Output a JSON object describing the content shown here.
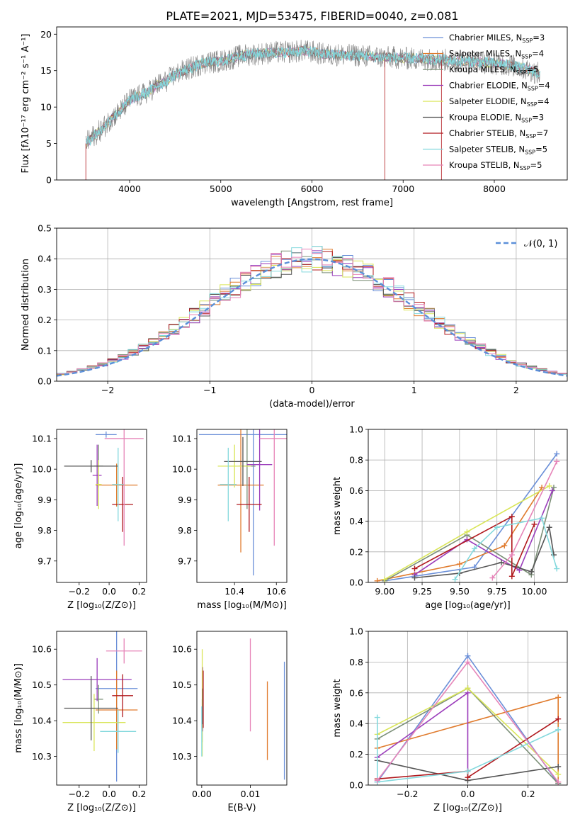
{
  "title": "PLATE=2021, MJD=53475, FIBERID=0040, z=0.081",
  "colors": [
    "#6a8fd8",
    "#e07b2d",
    "#7b8f77",
    "#9b3dbb",
    "#d9e558",
    "#555555",
    "#b0181d",
    "#84d9dd",
    "#e684b8"
  ],
  "chart_data": [
    {
      "id": "spectrum",
      "type": "line",
      "xlabel": "wavelength [Angstrom, rest frame]",
      "ylabel": "Flux [fλ10⁻¹⁷ erg cm⁻² s⁻¹ A⁻¹]",
      "xlim": [
        3200,
        8800
      ],
      "ylim": [
        0,
        21
      ],
      "xticks": [
        "4000",
        "5000",
        "6000",
        "7000",
        "8000"
      ],
      "yticks": [
        "0",
        "5",
        "10",
        "15",
        "20"
      ],
      "data_color": "#808080",
      "model_color": "#84d9dd",
      "data_points": [
        [
          3520,
          5
        ],
        [
          3600,
          6
        ],
        [
          3700,
          7
        ],
        [
          3800,
          8.5
        ],
        [
          3900,
          9.5
        ],
        [
          4000,
          11
        ],
        [
          4100,
          11.5
        ],
        [
          4200,
          12
        ],
        [
          4300,
          13
        ],
        [
          4400,
          13.5
        ],
        [
          4500,
          14.5
        ],
        [
          4600,
          15
        ],
        [
          4700,
          15.5
        ],
        [
          4800,
          16
        ],
        [
          4900,
          16.2
        ],
        [
          5000,
          16.3
        ],
        [
          5100,
          16.6
        ],
        [
          5200,
          17
        ],
        [
          5300,
          17.2
        ],
        [
          5400,
          17.3
        ],
        [
          5500,
          17.4
        ],
        [
          5600,
          17.5
        ],
        [
          5700,
          17.5
        ],
        [
          5800,
          17.6
        ],
        [
          5900,
          17.7
        ],
        [
          6000,
          17.6
        ],
        [
          6100,
          17.3
        ],
        [
          6200,
          17.2
        ],
        [
          6300,
          17.2
        ],
        [
          6400,
          17.1
        ],
        [
          6500,
          17.1
        ],
        [
          6600,
          17.0
        ],
        [
          6700,
          16.9
        ],
        [
          6800,
          16.8
        ],
        [
          6900,
          16.8
        ],
        [
          7000,
          16.7
        ],
        [
          7200,
          16.6
        ],
        [
          7400,
          16.5
        ],
        [
          7600,
          16.3
        ],
        [
          7800,
          16.2
        ],
        [
          8000,
          16.0
        ],
        [
          8200,
          15.7
        ],
        [
          8400,
          15.0
        ],
        [
          8500,
          14.5
        ]
      ],
      "legend": [
        {
          "name": "Chabrier MILES, N",
          "sub": "SSP",
          "suffix": "=3"
        },
        {
          "name": "Salpeter MILES, N",
          "sub": "SSP",
          "suffix": "=4"
        },
        {
          "name": "Kroupa MILES, N",
          "sub": "SSP",
          "suffix": "=5"
        },
        {
          "name": "Chabrier ELODIE, N",
          "sub": "SSP",
          "suffix": "=4"
        },
        {
          "name": "Salpeter ELODIE, N",
          "sub": "SSP",
          "suffix": "=4"
        },
        {
          "name": "Kroupa ELODIE, N",
          "sub": "SSP",
          "suffix": "=3"
        },
        {
          "name": "Chabrier STELIB, N",
          "sub": "SSP",
          "suffix": "=7"
        },
        {
          "name": "Salpeter STELIB, N",
          "sub": "SSP",
          "suffix": "=5"
        },
        {
          "name": "Kroupa STELIB, N",
          "sub": "SSP",
          "suffix": "=5"
        }
      ],
      "grid": false,
      "legend_position": "right"
    },
    {
      "id": "residuals",
      "type": "histogram",
      "xlabel": "(data-model)/error",
      "ylabel": "Normed distribution",
      "xlim": [
        -2.5,
        2.5
      ],
      "ylim": [
        0,
        0.5
      ],
      "xticks": [
        "−2",
        "−1",
        "0",
        "1",
        "2"
      ],
      "yticks": [
        "0.0",
        "0.1",
        "0.2",
        "0.3",
        "0.4",
        "0.5"
      ],
      "bin_width": 0.1,
      "gaussian_label": "𝒩(0, 1)",
      "gaussian_color": "#5b8fd9",
      "grid": true,
      "legend_position": "top-right"
    },
    {
      "id": "age-vs-z",
      "type": "errorbar",
      "xlabel": "Z [log₁₀(Z/Z⊙)]",
      "ylabel": "age  [log₁₀(age/yr)]",
      "xlim": [
        -0.35,
        0.25
      ],
      "ylim": [
        9.63,
        10.13
      ],
      "xticks": [
        "−0.2",
        "0.0",
        "0.2"
      ],
      "yticks": [
        "9.7",
        "9.8",
        "9.9",
        "10.0",
        "10.1"
      ],
      "points": [
        {
          "x": -0.02,
          "xerr": 0.07,
          "y": 10.113,
          "yerr": 0.01
        },
        {
          "x": 0.05,
          "xerr": 0.14,
          "y": 9.948,
          "yerr": 0.07
        },
        {
          "x": -0.07,
          "xerr": 0.03,
          "y": 10.01,
          "yerr": 0.07
        },
        {
          "x": -0.08,
          "xerr": 0.03,
          "y": 9.98,
          "yerr": 0.1
        },
        {
          "x": -0.07,
          "xerr": 0.02,
          "y": 9.95,
          "yerr": 0.08
        },
        {
          "x": -0.12,
          "xerr": 0.18,
          "y": 10.01,
          "yerr": 0.02
        },
        {
          "x": 0.09,
          "xerr": 0.07,
          "y": 9.885,
          "yerr": 0.09
        },
        {
          "x": 0.06,
          "xerr": 0.04,
          "y": 9.95,
          "yerr": 0.12
        },
        {
          "x": 0.1,
          "xerr": 0.13,
          "y": 10.1,
          "yerr": 0.35
        }
      ]
    },
    {
      "id": "age-vs-mass",
      "type": "errorbar",
      "xlabel": "mass [log₁₀(M/M⊙)]",
      "ylabel": "",
      "xlim": [
        10.22,
        10.65
      ],
      "ylim": [
        9.63,
        10.13
      ],
      "xticks": [
        "10.4",
        "10.6"
      ],
      "yticks": [
        "9.7",
        "9.8",
        "9.9",
        "10.0",
        "10.1"
      ],
      "points": [
        {
          "x": 10.49,
          "xerr": 0.26,
          "y": 10.113,
          "yerr": 0.46
        },
        {
          "x": 10.43,
          "xerr": 0.11,
          "y": 9.948,
          "yerr": 0.22
        },
        {
          "x": 10.46,
          "xerr": 0.04,
          "y": 10.01,
          "yerr": 0.14
        },
        {
          "x": 10.52,
          "xerr": 0.06,
          "y": 10.015,
          "yerr": 0.15
        },
        {
          "x": 10.4,
          "xerr": 0.08,
          "y": 10.01,
          "yerr": 0.07
        },
        {
          "x": 10.44,
          "xerr": 0.09,
          "y": 10.025,
          "yerr": 0.08
        },
        {
          "x": 10.47,
          "xerr": 0.06,
          "y": 9.885,
          "yerr": 0.09
        },
        {
          "x": 10.37,
          "xerr": 0.04,
          "y": 9.95,
          "yerr": 0.12
        },
        {
          "x": 10.59,
          "xerr": 0.07,
          "y": 10.1,
          "yerr": 0.35
        }
      ]
    },
    {
      "id": "weight-vs-age",
      "type": "line",
      "xlabel": "age  [log₁₀(age/yr)]",
      "ylabel": "mass weight",
      "xlim": [
        8.89,
        10.22
      ],
      "ylim": [
        0,
        1
      ],
      "xticks": [
        "9.00",
        "9.25",
        "9.50",
        "9.75",
        "10.00"
      ],
      "yticks": [
        "0.0",
        "0.2",
        "0.4",
        "0.6",
        "0.8",
        "1.0"
      ],
      "series": [
        [
          [
            9.0,
            0.01
          ],
          [
            9.6,
            0.1
          ],
          [
            10.15,
            0.84
          ]
        ],
        [
          [
            8.95,
            0.01
          ],
          [
            9.5,
            0.12
          ],
          [
            9.8,
            0.24
          ],
          [
            10.05,
            0.62
          ]
        ],
        [
          [
            9.0,
            0.01
          ],
          [
            9.55,
            0.31
          ],
          [
            9.98,
            0.05
          ],
          [
            10.13,
            0.62
          ]
        ],
        [
          [
            9.2,
            0.05
          ],
          [
            9.55,
            0.28
          ],
          [
            9.9,
            0.08
          ],
          [
            10.12,
            0.6
          ]
        ],
        [
          [
            9.0,
            0.02
          ],
          [
            9.55,
            0.33
          ],
          [
            10.1,
            0.63
          ]
        ],
        [
          [
            9.2,
            0.03
          ],
          [
            9.5,
            0.06
          ],
          [
            9.78,
            0.13
          ],
          [
            9.98,
            0.07
          ],
          [
            10.1,
            0.36
          ],
          [
            10.13,
            0.18
          ]
        ],
        [
          [
            9.2,
            0.09
          ],
          [
            9.85,
            0.43
          ],
          [
            9.85,
            0.04
          ],
          [
            10.0,
            0.38
          ]
        ],
        [
          [
            9.47,
            0.02
          ],
          [
            9.6,
            0.22
          ],
          [
            9.75,
            0.36
          ],
          [
            10.05,
            0.42
          ],
          [
            10.15,
            0.09
          ]
        ],
        [
          [
            9.72,
            0.03
          ],
          [
            9.85,
            0.18
          ],
          [
            10.15,
            0.79
          ]
        ]
      ],
      "grid": true
    },
    {
      "id": "mass-vs-z",
      "type": "errorbar",
      "xlabel": "Z [log₁₀(Z/Z⊙)]",
      "ylabel": "mass [log₁₀(M/M⊙)]",
      "xlim": [
        -0.35,
        0.25
      ],
      "ylim": [
        10.22,
        10.65
      ],
      "xticks": [
        "−0.2",
        "0.0",
        "0.2"
      ],
      "yticks": [
        "10.3",
        "10.4",
        "10.5",
        "10.6"
      ],
      "points": [
        {
          "x": 0.05,
          "xerr": 0.14,
          "y": 10.49,
          "yerr": 0.26
        },
        {
          "x": 0.05,
          "xerr": 0.14,
          "y": 10.43,
          "yerr": 0.11
        },
        {
          "x": -0.07,
          "xerr": 0.03,
          "y": 10.46,
          "yerr": 0.04
        },
        {
          "x": -0.08,
          "xerr": 0.23,
          "y": 10.515,
          "yerr": 0.06
        },
        {
          "x": -0.1,
          "xerr": 0.21,
          "y": 10.395,
          "yerr": 0.08
        },
        {
          "x": -0.12,
          "xerr": 0.18,
          "y": 10.435,
          "yerr": 0.09
        },
        {
          "x": 0.09,
          "xerr": 0.07,
          "y": 10.47,
          "yerr": 0.06
        },
        {
          "x": 0.06,
          "xerr": 0.12,
          "y": 10.37,
          "yerr": 0.06
        },
        {
          "x": 0.1,
          "xerr": 0.12,
          "y": 10.595,
          "yerr": 0.035
        }
      ]
    },
    {
      "id": "mass-vs-ebv",
      "type": "errorbar",
      "xlabel": "E(B-V)",
      "ylabel": "",
      "xlim": [
        -0.001,
        0.0175
      ],
      "ylim": [
        10.22,
        10.65
      ],
      "xticks": [
        "0.00",
        "0.01"
      ],
      "yticks": [
        "10.3",
        "10.4",
        "10.5",
        "10.6"
      ],
      "points": [
        {
          "x": 0.017,
          "xerr": 0,
          "y": 10.4,
          "yerr": 0.165
        },
        {
          "x": 0.0135,
          "xerr": 0,
          "y": 10.4,
          "yerr": 0.11
        },
        {
          "x": 0.0001,
          "xerr": 0,
          "y": 10.4,
          "yerr": 0.06
        },
        {
          "x": 0.0002,
          "xerr": 0,
          "y": 10.46,
          "yerr": 0.09
        },
        {
          "x": 0.0001,
          "xerr": 0,
          "y": 10.45,
          "yerr": 0.15
        },
        {
          "x": 0.0002,
          "xerr": 0,
          "y": 10.44,
          "yerr": 0.05
        },
        {
          "x": 0.0003,
          "xerr": 0,
          "y": 10.46,
          "yerr": 0.08
        },
        {
          "x": 0.0,
          "xerr": 0,
          "y": 10.37,
          "yerr": 0.07
        },
        {
          "x": 0.01,
          "xerr": 0,
          "y": 10.5,
          "yerr": 0.13
        }
      ]
    },
    {
      "id": "weight-vs-z",
      "type": "line",
      "xlabel": "Z [log₁₀(Z/Z⊙)]",
      "ylabel": "mass weight",
      "xlim": [
        -0.33,
        0.33
      ],
      "ylim": [
        0,
        1
      ],
      "xticks": [
        "−0.2",
        "0.0",
        "0.2"
      ],
      "yticks": [
        "0.0",
        "0.2",
        "0.4",
        "0.6",
        "0.8",
        "1.0"
      ],
      "series": [
        [
          [
            -0.3,
            0.02
          ],
          [
            0.0,
            0.84
          ],
          [
            0.3,
            0.01
          ]
        ],
        [
          [
            -0.3,
            0.24
          ],
          [
            0.3,
            0.57
          ],
          [
            0.3,
            0.02
          ]
        ],
        [
          [
            -0.3,
            0.3
          ],
          [
            0.0,
            0.63
          ],
          [
            0.3,
            0.01
          ]
        ],
        [
          [
            -0.3,
            0.18
          ],
          [
            0.0,
            0.6
          ],
          [
            0.0,
            0.09
          ]
        ],
        [
          [
            -0.3,
            0.33
          ],
          [
            0.0,
            0.63
          ],
          [
            0.3,
            0.07
          ]
        ],
        [
          [
            -0.3,
            0.16
          ],
          [
            0.0,
            0.03
          ],
          [
            0.3,
            0.12
          ]
        ],
        [
          [
            -0.3,
            0.04
          ],
          [
            0.0,
            0.09
          ],
          [
            0.0,
            0.05
          ],
          [
            0.3,
            0.43
          ]
        ],
        [
          [
            -0.3,
            0.44
          ],
          [
            -0.3,
            0.02
          ],
          [
            0.0,
            0.09
          ],
          [
            0.3,
            0.36
          ]
        ],
        [
          [
            -0.3,
            0.03
          ],
          [
            0.0,
            0.8
          ],
          [
            0.3,
            0.02
          ]
        ]
      ],
      "grid": true
    }
  ]
}
